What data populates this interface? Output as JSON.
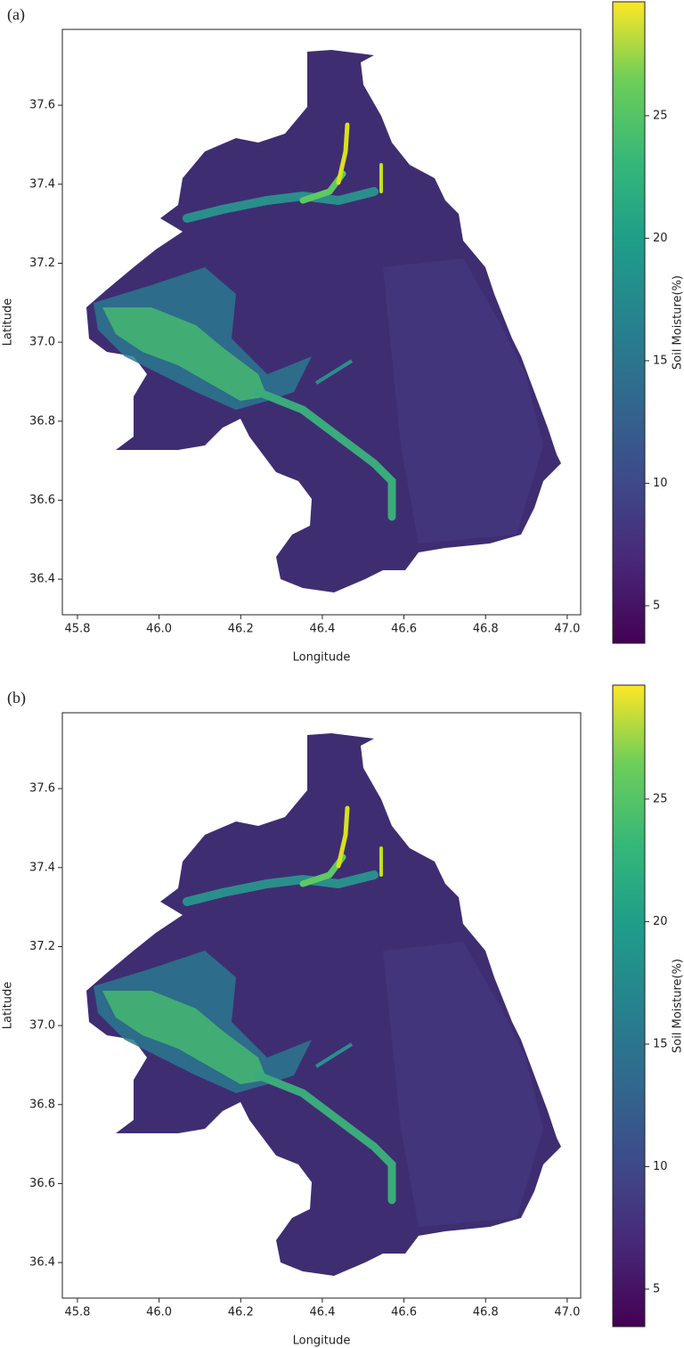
{
  "chart_data": [
    {
      "type": "heatmap",
      "title": "(a)",
      "xlabel": "Longitude",
      "ylabel": "Latitude",
      "colorbar_label": "Soil Moisture(%)",
      "colormap": "viridis",
      "xlim": [
        45.763,
        47.033
      ],
      "xticks": [
        45.8,
        {
          "value": 46.0,
          "label": "46.0"
        },
        46.2,
        46.4,
        46.6,
        46.8,
        {
          "value": 47.0,
          "label": "47.0"
        }
      ],
      "ylim": [
        36.31,
        37.792
      ],
      "yticks": [
        36.4,
        36.6,
        36.8,
        {
          "value": 37.0,
          "label": "37.0"
        },
        37.2,
        37.4,
        37.6
      ],
      "clim": [
        3.47,
        29.65
      ],
      "cticks": [
        5,
        10,
        15,
        20,
        25
      ]
    },
    {
      "type": "heatmap",
      "title": "(b)",
      "xlabel": "Longitude",
      "ylabel": "Latitude",
      "colorbar_label": "Soil Moisture(%)",
      "colormap": "viridis",
      "xlim": [
        45.763,
        47.033
      ],
      "xticks": [
        45.8,
        {
          "value": 46.0,
          "label": "46.0"
        },
        46.2,
        46.4,
        46.6,
        46.8,
        {
          "value": 47.0,
          "label": "47.0"
        }
      ],
      "ylim": [
        36.31,
        37.792
      ],
      "yticks": [
        36.4,
        36.6,
        36.8,
        {
          "value": 37.0,
          "label": "37.0"
        },
        37.2,
        37.4,
        37.6
      ],
      "clim": [
        3.47,
        29.65
      ],
      "cticks": [
        5,
        10,
        15,
        20,
        25
      ]
    }
  ]
}
